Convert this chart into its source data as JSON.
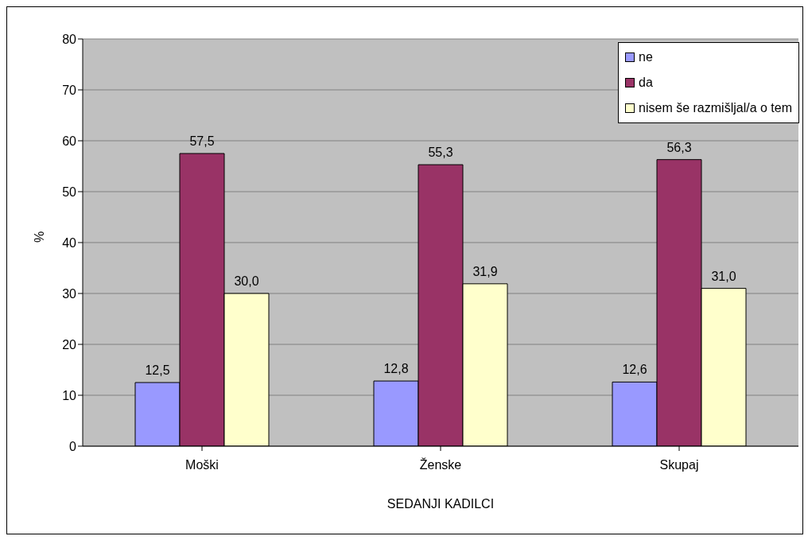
{
  "chart_data": {
    "type": "bar",
    "xlabel": "SEDANJI KADILCI",
    "ylabel": "%",
    "categories": [
      "Moški",
      "Ženske",
      "Skupaj"
    ],
    "series": [
      {
        "name": "ne",
        "color": "#9999ff",
        "values": [
          12.5,
          12.8,
          12.6
        ],
        "value_labels": [
          "12,5",
          "12,8",
          "12,6"
        ]
      },
      {
        "name": "da",
        "color": "#993366",
        "values": [
          57.5,
          55.3,
          56.3
        ],
        "value_labels": [
          "57,5",
          "55,3",
          "56,3"
        ]
      },
      {
        "name": "nisem še razmišljal/a o tem",
        "color": "#ffffcc",
        "values": [
          30.0,
          31.9,
          31.0
        ],
        "value_labels": [
          "30,0",
          "31,9",
          "31,0"
        ]
      }
    ],
    "ylim": [
      0,
      80
    ],
    "yticks": [
      0,
      10,
      20,
      30,
      40,
      50,
      60,
      70,
      80
    ],
    "grid": "y",
    "legend": "top right"
  }
}
